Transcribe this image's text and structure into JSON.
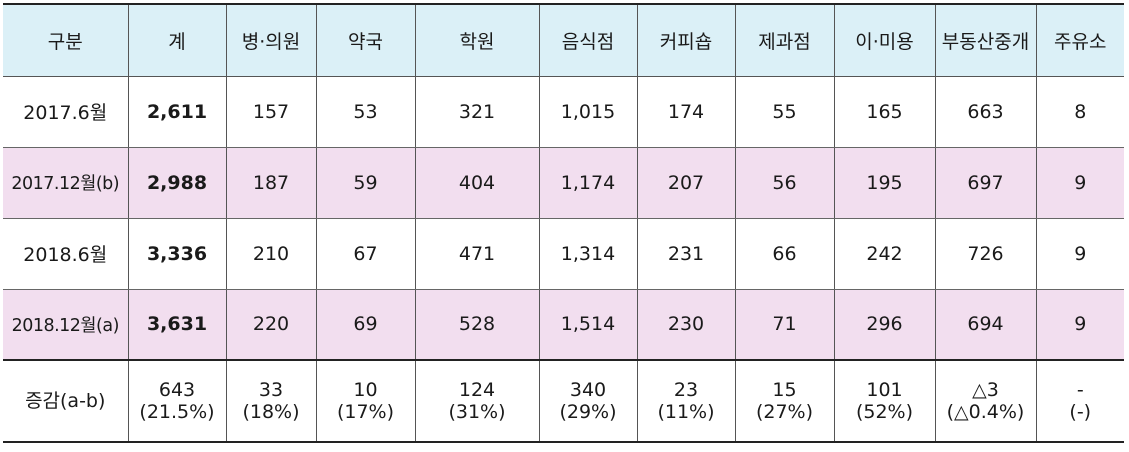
{
  "header": [
    "구분",
    "계",
    "병·의원",
    "약국",
    "학원",
    "음식점",
    "커피숍",
    "제과점",
    "이·미용",
    "부동산중개",
    "주유소"
  ],
  "rows": [
    {
      "label": "2017.6월",
      "values": [
        "2,611",
        "157",
        "53",
        "321",
        "1,015",
        "174",
        "55",
        "165",
        "663",
        "8"
      ],
      "highlight": false
    },
    {
      "label": "2017.12월(b)",
      "values": [
        "2,988",
        "187",
        "59",
        "404",
        "1,174",
        "207",
        "56",
        "195",
        "697",
        "9"
      ],
      "highlight": true
    },
    {
      "label": "2018.6월",
      "values": [
        "3,336",
        "210",
        "67",
        "471",
        "1,314",
        "231",
        "66",
        "242",
        "726",
        "9"
      ],
      "highlight": false
    },
    {
      "label": "2018.12월(a)",
      "values": [
        "3,631",
        "220",
        "69",
        "528",
        "1,514",
        "230",
        "71",
        "296",
        "694",
        "9"
      ],
      "highlight": true
    }
  ],
  "change": {
    "label": "증감(a-b)",
    "values": [
      {
        "main": "643",
        "sub": "(21.5%)"
      },
      {
        "main": "33",
        "sub": "(18%)"
      },
      {
        "main": "10",
        "sub": "(17%)"
      },
      {
        "main": "124",
        "sub": "(31%)"
      },
      {
        "main": "340",
        "sub": "(29%)"
      },
      {
        "main": "23",
        "sub": "(11%)"
      },
      {
        "main": "15",
        "sub": "(27%)"
      },
      {
        "main": "101",
        "sub": "(52%)"
      },
      {
        "main": "△3",
        "sub": "(△0.4%)"
      },
      {
        "main": "-",
        "sub": "(-)"
      }
    ]
  },
  "colors": {
    "header_bg": "#dbf0f7",
    "highlight_bg": "#f2deef"
  }
}
